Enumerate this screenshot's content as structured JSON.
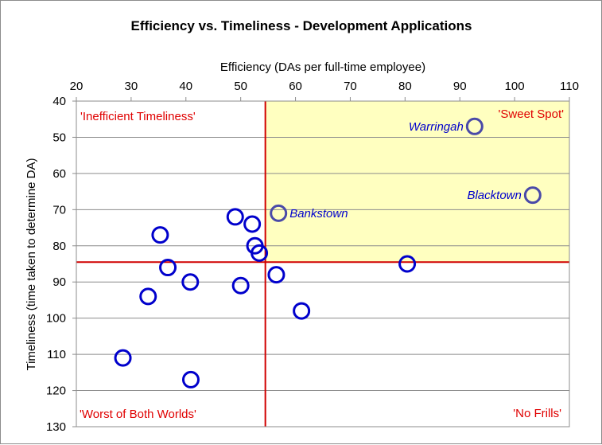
{
  "chart_data": {
    "type": "scatter",
    "title": "Efficiency vs. Timeliness - Development Applications",
    "xlabel": "Efficiency (DAs per full-time  employee)",
    "ylabel": "Timeliness (time taken to determine DA)",
    "xlim": [
      20,
      110
    ],
    "ylim": [
      40,
      130
    ],
    "y_inverted": true,
    "x_axis_position": "top",
    "x_ticks": [
      "20",
      "30",
      "40",
      "50",
      "60",
      "70",
      "80",
      "90",
      "100",
      "110"
    ],
    "y_ticks": [
      "40",
      "50",
      "60",
      "70",
      "80",
      "90",
      "100",
      "110",
      "120",
      "130"
    ],
    "grid": "horizontal",
    "threshold_x": 54.5,
    "threshold_y": 84.5,
    "sweet_spot_fill": "#ffffc0",
    "threshold_color": "#d00000",
    "marker_edge_color": "#0000cc",
    "highlight_edge_color": "#4a4aa8",
    "quadrant_labels": {
      "top_left": "'Inefficient Timeliness'",
      "top_right": "'Sweet Spot'",
      "bottom_left": "'Worst of Both Worlds'",
      "bottom_right": "'No Frills'"
    },
    "points": [
      {
        "x": 92.7,
        "y": 47,
        "label": "Warringah",
        "highlight": true
      },
      {
        "x": 103.3,
        "y": 66,
        "label": "Blacktown",
        "highlight": true
      },
      {
        "x": 56.9,
        "y": 71,
        "label": "Bankstown",
        "highlight": true
      },
      {
        "x": 49.0,
        "y": 72,
        "label": "",
        "highlight": false
      },
      {
        "x": 52.1,
        "y": 74,
        "label": "",
        "highlight": false
      },
      {
        "x": 35.3,
        "y": 77,
        "label": "",
        "highlight": false
      },
      {
        "x": 52.6,
        "y": 80,
        "label": "",
        "highlight": false
      },
      {
        "x": 53.4,
        "y": 82,
        "label": "",
        "highlight": false
      },
      {
        "x": 80.4,
        "y": 85,
        "label": "",
        "highlight": false
      },
      {
        "x": 36.7,
        "y": 86,
        "label": "",
        "highlight": false
      },
      {
        "x": 56.5,
        "y": 88,
        "label": "",
        "highlight": false
      },
      {
        "x": 40.8,
        "y": 90,
        "label": "",
        "highlight": false
      },
      {
        "x": 50.0,
        "y": 91,
        "label": "",
        "highlight": false
      },
      {
        "x": 33.1,
        "y": 94,
        "label": "",
        "highlight": false
      },
      {
        "x": 61.1,
        "y": 98,
        "label": "",
        "highlight": false
      },
      {
        "x": 28.5,
        "y": 111,
        "label": "",
        "highlight": false
      },
      {
        "x": 40.9,
        "y": 117,
        "label": "",
        "highlight": false
      }
    ]
  }
}
